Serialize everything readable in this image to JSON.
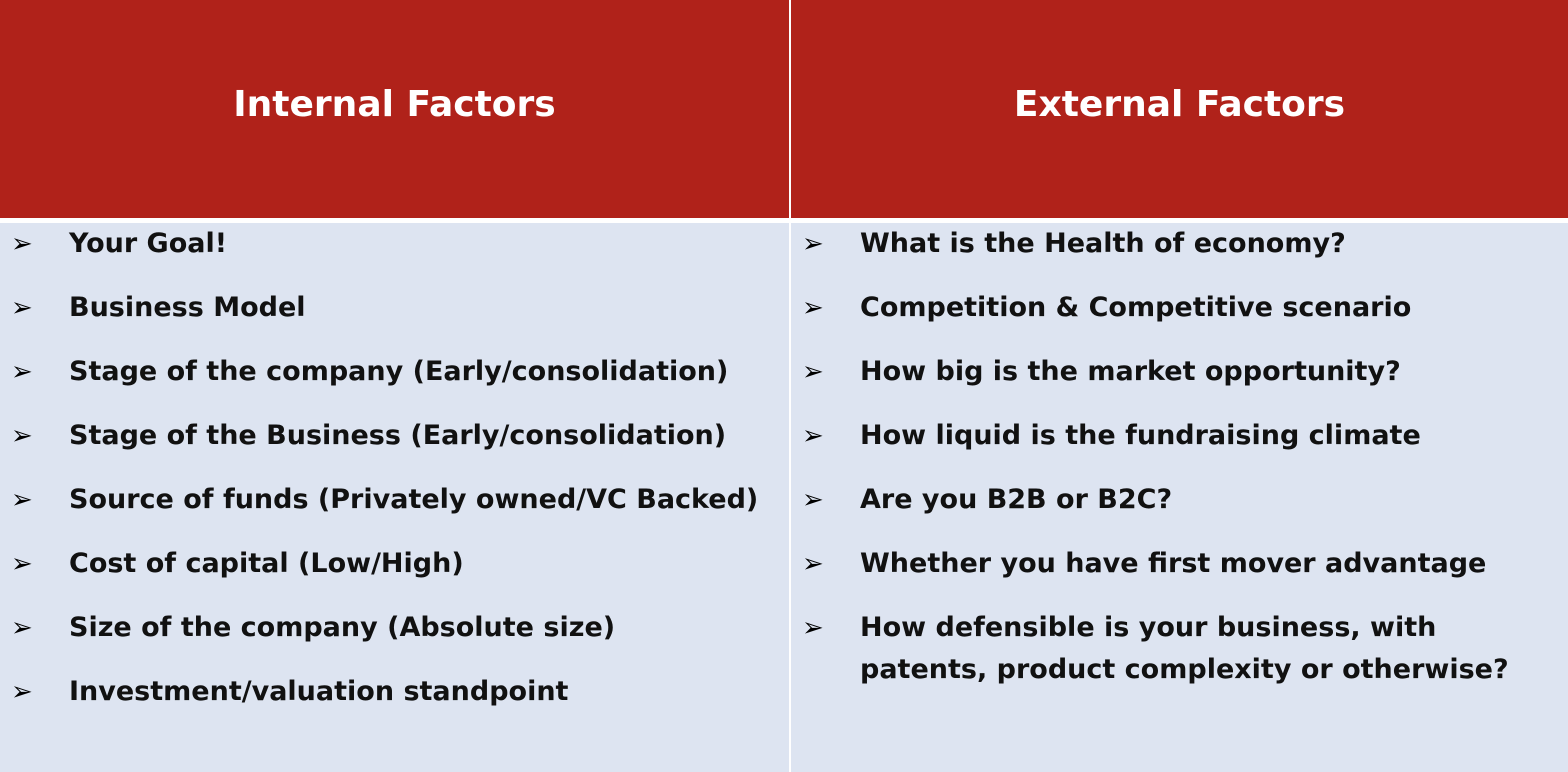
{
  "headers": {
    "internal": "Internal Factors",
    "external": "External Factors"
  },
  "bullet_glyph": "➢",
  "colors": {
    "header_bg": "#b0221a",
    "body_bg": "#dde4f1",
    "header_text": "#ffffff"
  },
  "internal_items": [
    "Your Goal!",
    "Business Model",
    "Stage of the company (Early/consolidation)",
    "Stage of the Business (Early/consolidation)",
    "Source of funds (Privately owned/VC Backed)",
    "Cost of capital (Low/High)",
    "Size of the company (Absolute size)",
    "Investment/valuation standpoint"
  ],
  "external_items": [
    "What is the Health of economy?",
    "Competition & Competitive scenario",
    "How big is the market opportunity?",
    "How liquid is the fundraising climate",
    "Are you B2B or B2C?",
    "Whether you have first mover advantage",
    " How defensible is your business, with patents, product complexity or otherwise?"
  ]
}
